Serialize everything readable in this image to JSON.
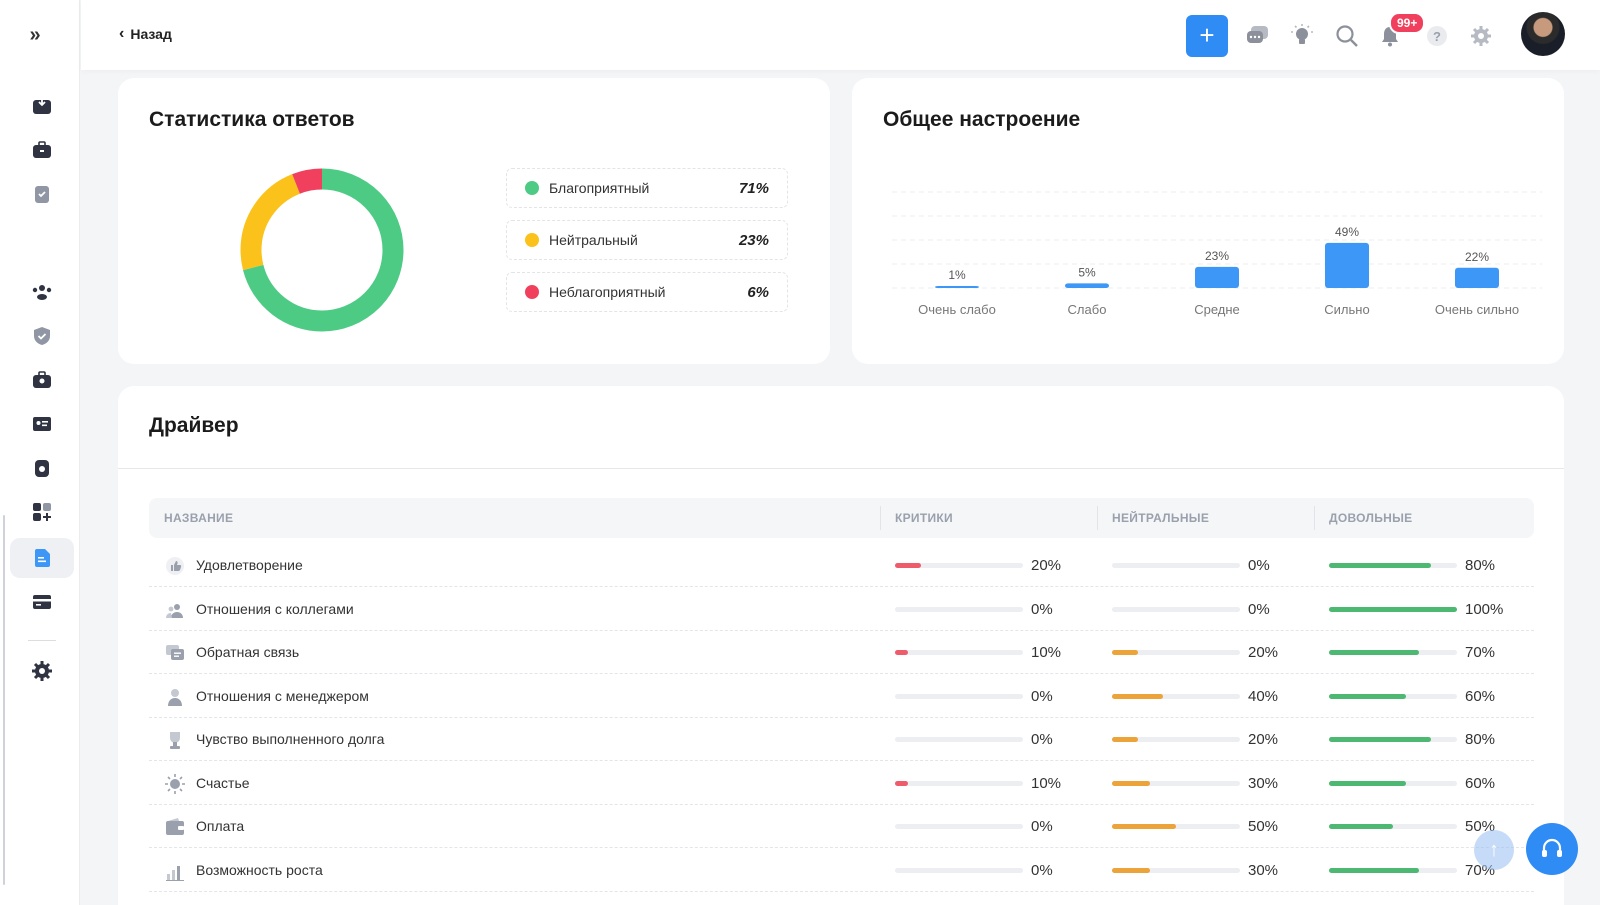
{
  "header": {
    "back_label": "Назад",
    "notifications_badge": "99+"
  },
  "response_stats": {
    "title": "Статистика ответов",
    "items": [
      {
        "label": "Благоприятный",
        "value": "71%",
        "color": "#4dcb85",
        "fraction": 0.71
      },
      {
        "label": "Нейтральный",
        "value": "23%",
        "color": "#fbc21b",
        "fraction": 0.23
      },
      {
        "label": "Неблагоприятный",
        "value": "6%",
        "color": "#f0405e",
        "fraction": 0.06
      }
    ]
  },
  "mood": {
    "title": "Общее настроение",
    "chart_data": {
      "type": "bar",
      "categories": [
        "Очень слабо",
        "Слабо",
        "Средне",
        "Сильно",
        "Очень сильно"
      ],
      "values": [
        1,
        5,
        23,
        49,
        22
      ],
      "value_labels": [
        "1%",
        "5%",
        "23%",
        "49%",
        "22%"
      ],
      "ylim": [
        0,
        100
      ],
      "color": "#3d97f6",
      "grid": true
    }
  },
  "driver": {
    "title": "Драйвер",
    "columns": [
      "НАЗВАНИЕ",
      "КРИТИКИ",
      "НЕЙТРАЛЬНЫЕ",
      "ДОВОЛЬНЫЕ"
    ],
    "colors": {
      "critics": "#ee5c6c",
      "neutral": "#eba33a",
      "satisfied": "#4cb871"
    },
    "rows": [
      {
        "name": "Удовлетворение",
        "icon": "thumbs-up-icon",
        "critics": "20%",
        "neutral": "0%",
        "satisfied": "80%"
      },
      {
        "name": "Отношения с коллегами",
        "icon": "people-icon",
        "critics": "0%",
        "neutral": "0%",
        "satisfied": "100%"
      },
      {
        "name": "Обратная связь",
        "icon": "chat-icon",
        "critics": "10%",
        "neutral": "20%",
        "satisfied": "70%"
      },
      {
        "name": "Отношения с менеджером",
        "icon": "person-icon",
        "critics": "0%",
        "neutral": "40%",
        "satisfied": "60%"
      },
      {
        "name": "Чувство выполненного долга",
        "icon": "trophy-icon",
        "critics": "0%",
        "neutral": "20%",
        "satisfied": "80%"
      },
      {
        "name": "Счастье",
        "icon": "sun-icon",
        "critics": "10%",
        "neutral": "30%",
        "satisfied": "60%"
      },
      {
        "name": "Оплата",
        "icon": "wallet-icon",
        "critics": "0%",
        "neutral": "50%",
        "satisfied": "50%"
      },
      {
        "name": "Возможность роста",
        "icon": "growth-chart-icon",
        "critics": "0%",
        "neutral": "30%",
        "satisfied": "70%"
      }
    ]
  }
}
